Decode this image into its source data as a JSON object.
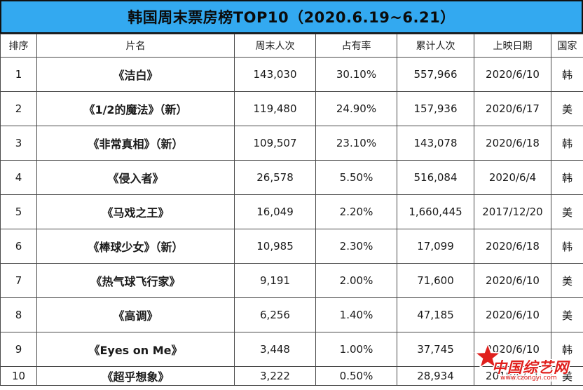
{
  "title": "韩国周末票房榜TOP10（2020.6.19~6.21）",
  "headers": {
    "rank": "排序",
    "film": "片名",
    "weekend": "周末人次",
    "share": "占有率",
    "total": "累计人次",
    "release": "上映日期",
    "country": "国家"
  },
  "rows": [
    {
      "rank": "1",
      "film": "《洁白》",
      "weekend": "143,030",
      "share": "30.10%",
      "total": "557,966",
      "release": "2020/6/10",
      "country": "韩"
    },
    {
      "rank": "2",
      "film": "《1/2的魔法》（新）",
      "weekend": "119,480",
      "share": "24.90%",
      "total": "157,936",
      "release": "2020/6/17",
      "country": "美"
    },
    {
      "rank": "3",
      "film": "《非常真相》（新）",
      "weekend": "109,507",
      "share": "23.10%",
      "total": "143,078",
      "release": "2020/6/18",
      "country": "韩"
    },
    {
      "rank": "4",
      "film": "《侵入者》",
      "weekend": "26,578",
      "share": "5.50%",
      "total": "516,084",
      "release": "2020/6/4",
      "country": "韩"
    },
    {
      "rank": "5",
      "film": "《马戏之王》",
      "weekend": "16,049",
      "share": "2.20%",
      "total": "1,660,445",
      "release": "2017/12/20",
      "country": "美"
    },
    {
      "rank": "6",
      "film": "《棒球少女》（新）",
      "weekend": "10,985",
      "share": "2.30%",
      "total": "17,099",
      "release": "2020/6/18",
      "country": "韩"
    },
    {
      "rank": "7",
      "film": "《热气球飞行家》",
      "weekend": "9,191",
      "share": "2.00%",
      "total": "71,600",
      "release": "2020/6/10",
      "country": "美"
    },
    {
      "rank": "8",
      "film": "《高调》",
      "weekend": "6,256",
      "share": "1.40%",
      "total": "47,185",
      "release": "2020/6/10",
      "country": "美"
    },
    {
      "rank": "9",
      "film": "《Eyes on Me》",
      "weekend": "3,448",
      "share": "1.00%",
      "total": "37,745",
      "release": "2020/6/10",
      "country": "韩"
    },
    {
      "rank": "10",
      "film": "《超乎想象》",
      "weekend": "3,222",
      "share": "0.50%",
      "total": "28,934",
      "release": "2018/6/21",
      "country": "美"
    }
  ],
  "watermark": {
    "text": "中国综艺网",
    "url": "www.czongyi.com"
  },
  "colors": {
    "title_bg": "#33a9f0",
    "border": "#4a4a4a",
    "watermark": "#e0201d"
  }
}
